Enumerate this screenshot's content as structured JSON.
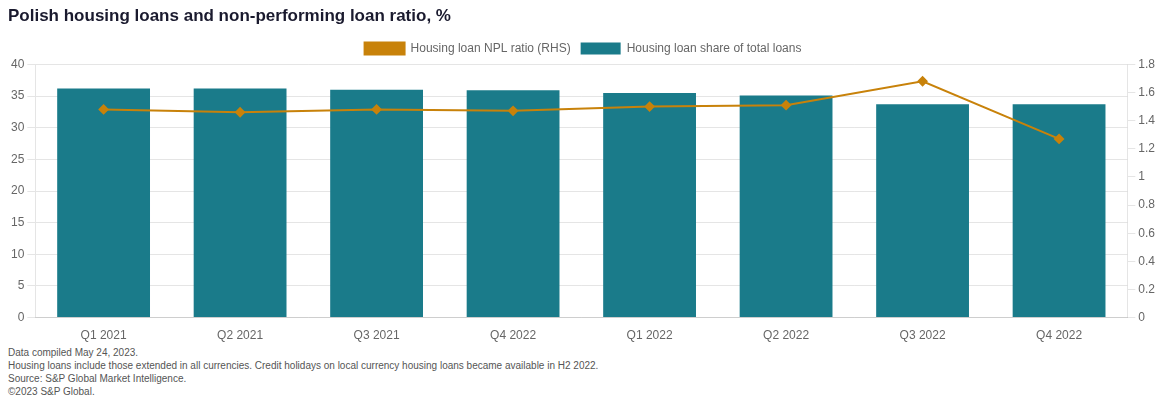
{
  "chart_data": {
    "type": "bar",
    "title": "Polish housing loans and non-performing loan ratio, %",
    "categories": [
      "Q1 2021",
      "Q2 2021",
      "Q3 2021",
      "Q4 2022",
      "Q1 2022",
      "Q2 2022",
      "Q3 2022",
      "Q4 2022"
    ],
    "series": [
      {
        "name": "Housing loan share of total loans",
        "type": "bar",
        "color": "#1a7b8a",
        "values": [
          36.2,
          36.2,
          36.0,
          35.9,
          35.5,
          35.1,
          33.7,
          33.7
        ]
      },
      {
        "name": "Housing loan NPL ratio (RHS)",
        "type": "line",
        "color": "#c8820a",
        "marker": "diamond",
        "axis": "y2",
        "values": [
          1.48,
          1.46,
          1.48,
          1.47,
          1.5,
          1.51,
          1.68,
          1.27
        ]
      }
    ],
    "ylim": [
      0,
      40
    ],
    "yticks": [
      0,
      5,
      10,
      15,
      20,
      25,
      30,
      35,
      40
    ],
    "y2lim": [
      0,
      1.8
    ],
    "y2ticks": [
      0,
      0.2,
      0.4,
      0.6,
      0.8,
      1,
      1.2,
      1.4,
      1.6,
      1.8
    ],
    "grid": true,
    "legend": "top",
    "annotations": [
      "Data compiled May 24, 2023.",
      "Housing loans include those extended in all currencies. Credit holidays on local currency housing loans became available in H2 2022.",
      "Source: S&P Global Market Intelligence.",
      "©2023 S&P Global."
    ]
  }
}
